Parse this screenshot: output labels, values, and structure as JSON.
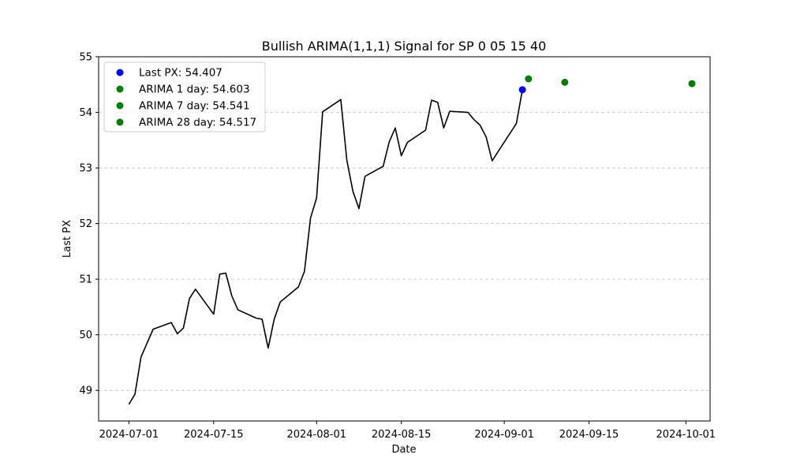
{
  "chart_data": {
    "type": "line",
    "title": "Bullish ARIMA(1,1,1) Signal for SP 0 05 15 40",
    "xlabel": "Date",
    "ylabel": "Last PX",
    "xlim": [
      "2024-06-26",
      "2024-10-05"
    ],
    "ylim": [
      48.45,
      55
    ],
    "x_ticks": [
      "2024-07-01",
      "2024-07-15",
      "2024-08-01",
      "2024-08-15",
      "2024-09-01",
      "2024-09-15",
      "2024-10-01"
    ],
    "y_ticks": [
      49,
      50,
      51,
      52,
      53,
      54,
      55
    ],
    "grid": "y-dashed",
    "legend_position": "upper-left",
    "series": [
      {
        "kind": "line",
        "color": "#000000",
        "points": [
          [
            "2024-07-01",
            48.75
          ],
          [
            "2024-07-02",
            48.93
          ],
          [
            "2024-07-03",
            49.6
          ],
          [
            "2024-07-05",
            50.1
          ],
          [
            "2024-07-08",
            50.22
          ],
          [
            "2024-07-09",
            50.02
          ],
          [
            "2024-07-10",
            50.12
          ],
          [
            "2024-07-11",
            50.65
          ],
          [
            "2024-07-12",
            50.82
          ],
          [
            "2024-07-15",
            50.37
          ],
          [
            "2024-07-16",
            51.09
          ],
          [
            "2024-07-17",
            51.11
          ],
          [
            "2024-07-18",
            50.7
          ],
          [
            "2024-07-19",
            50.45
          ],
          [
            "2024-07-22",
            50.3
          ],
          [
            "2024-07-23",
            50.28
          ],
          [
            "2024-07-24",
            49.76
          ],
          [
            "2024-07-25",
            50.28
          ],
          [
            "2024-07-26",
            50.59
          ],
          [
            "2024-07-29",
            50.86
          ],
          [
            "2024-07-30",
            51.14
          ],
          [
            "2024-07-31",
            52.1
          ],
          [
            "2024-08-01",
            52.46
          ],
          [
            "2024-08-02",
            54.01
          ],
          [
            "2024-08-05",
            54.23
          ],
          [
            "2024-08-06",
            53.14
          ],
          [
            "2024-08-07",
            52.58
          ],
          [
            "2024-08-08",
            52.27
          ],
          [
            "2024-08-09",
            52.85
          ],
          [
            "2024-08-12",
            53.03
          ],
          [
            "2024-08-13",
            53.47
          ],
          [
            "2024-08-14",
            53.72
          ],
          [
            "2024-08-15",
            53.22
          ],
          [
            "2024-08-16",
            53.46
          ],
          [
            "2024-08-19",
            53.68
          ],
          [
            "2024-08-20",
            54.22
          ],
          [
            "2024-08-21",
            54.18
          ],
          [
            "2024-08-22",
            53.72
          ],
          [
            "2024-08-23",
            54.02
          ],
          [
            "2024-08-26",
            54.0
          ],
          [
            "2024-08-27",
            53.87
          ],
          [
            "2024-08-28",
            53.77
          ],
          [
            "2024-08-29",
            53.56
          ],
          [
            "2024-08-30",
            53.13
          ],
          [
            "2024-09-03",
            53.8
          ],
          [
            "2024-09-04",
            54.407
          ]
        ]
      },
      {
        "kind": "scatter",
        "name": "Last PX: 54.407",
        "color": "#0000ff",
        "points": [
          [
            "2024-09-04",
            54.407
          ]
        ]
      },
      {
        "kind": "scatter",
        "name": "ARIMA 1 day: 54.603",
        "color": "#008000",
        "points": [
          [
            "2024-09-05",
            54.603
          ]
        ]
      },
      {
        "kind": "scatter",
        "name": "ARIMA 7 day: 54.541",
        "color": "#008000",
        "points": [
          [
            "2024-09-11",
            54.541
          ]
        ]
      },
      {
        "kind": "scatter",
        "name": "ARIMA 28 day: 54.517",
        "color": "#008000",
        "points": [
          [
            "2024-10-02",
            54.517
          ]
        ]
      }
    ]
  }
}
